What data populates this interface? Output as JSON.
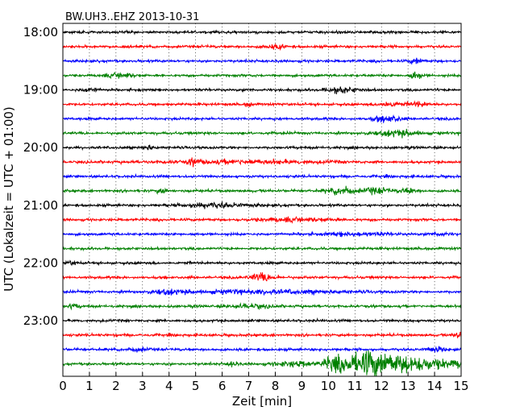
{
  "chart_data": {
    "type": "line",
    "title": "BW.UH3..EHZ 2013-10-31",
    "xlabel": "Zeit  [min]",
    "ylabel": "UTC (Lokalzeit = UTC + 01:00)",
    "xlim": [
      0,
      15
    ],
    "x_ticks": [
      0,
      1,
      2,
      3,
      4,
      5,
      6,
      7,
      8,
      9,
      10,
      11,
      12,
      13,
      14,
      15
    ],
    "x_tick_labels": [
      "0",
      "1",
      "2",
      "3",
      "4",
      "5",
      "6",
      "7",
      "8",
      "9",
      "10",
      "11",
      "12",
      "13",
      "14",
      "15"
    ],
    "y_tick_labels": [
      "18:00",
      "19:00",
      "20:00",
      "21:00",
      "22:00",
      "23:00"
    ],
    "y_tick_rows": [
      0,
      4,
      8,
      12,
      16,
      20
    ],
    "grid": "vertical dotted",
    "trace_interval_min": 15,
    "trace_count": 24,
    "color_cycle": [
      "#000000",
      "#ff0000",
      "#0000ff",
      "#008000"
    ],
    "traces": [
      {
        "start": "18:00",
        "color": "#000000",
        "amplitude": 0.3,
        "events": []
      },
      {
        "start": "18:15",
        "color": "#ff0000",
        "amplitude": 0.3,
        "events": [
          [
            8.0,
            0.5,
            0.4
          ]
        ]
      },
      {
        "start": "18:30",
        "color": "#0000ff",
        "amplitude": 0.3,
        "events": [
          [
            13.3,
            0.8,
            0.2
          ]
        ]
      },
      {
        "start": "18:45",
        "color": "#008000",
        "amplitude": 0.3,
        "events": [
          [
            2.2,
            0.6,
            0.5
          ],
          [
            13.3,
            1.0,
            0.2
          ]
        ]
      },
      {
        "start": "19:00",
        "color": "#000000",
        "amplitude": 0.3,
        "events": [
          [
            1.0,
            0.5,
            0.3
          ],
          [
            10.5,
            0.6,
            0.6
          ]
        ]
      },
      {
        "start": "19:15",
        "color": "#ff0000",
        "amplitude": 0.3,
        "events": [
          [
            7.0,
            0.7,
            0.1
          ],
          [
            12.3,
            0.6,
            0.4
          ],
          [
            13.4,
            0.5,
            0.4
          ]
        ]
      },
      {
        "start": "19:30",
        "color": "#0000ff",
        "amplitude": 0.3,
        "events": [
          [
            12.2,
            0.8,
            0.5
          ]
        ]
      },
      {
        "start": "19:45",
        "color": "#008000",
        "amplitude": 0.3,
        "events": [
          [
            12.6,
            0.7,
            0.9
          ]
        ]
      },
      {
        "start": "20:00",
        "color": "#000000",
        "amplitude": 0.3,
        "events": [
          [
            3.2,
            0.5,
            0.2
          ]
        ]
      },
      {
        "start": "20:15",
        "color": "#ff0000",
        "amplitude": 0.3,
        "events": [
          [
            4.9,
            0.6,
            0.2
          ],
          [
            7.0,
            0.4,
            3.0
          ]
        ]
      },
      {
        "start": "20:30",
        "color": "#0000ff",
        "amplitude": 0.3,
        "events": []
      },
      {
        "start": "20:45",
        "color": "#008000",
        "amplitude": 0.3,
        "events": [
          [
            3.7,
            0.5,
            0.2
          ],
          [
            10.5,
            0.9,
            0.5
          ],
          [
            11.8,
            0.7,
            0.5
          ],
          [
            13.0,
            0.6,
            0.3
          ]
        ]
      },
      {
        "start": "21:00",
        "color": "#000000",
        "amplitude": 0.3,
        "events": [
          [
            5.8,
            0.5,
            1.2
          ]
        ]
      },
      {
        "start": "21:15",
        "color": "#ff0000",
        "amplitude": 0.3,
        "events": [
          [
            8.8,
            0.4,
            1.5
          ]
        ]
      },
      {
        "start": "21:30",
        "color": "#0000ff",
        "amplitude": 0.3,
        "events": [
          [
            11.0,
            0.3,
            1.5
          ],
          [
            14.2,
            0.4,
            0.3
          ]
        ]
      },
      {
        "start": "21:45",
        "color": "#008000",
        "amplitude": 0.3,
        "events": []
      },
      {
        "start": "22:00",
        "color": "#000000",
        "amplitude": 0.3,
        "events": [
          [
            0.3,
            0.4,
            0.2
          ]
        ]
      },
      {
        "start": "22:15",
        "color": "#ff0000",
        "amplitude": 0.3,
        "events": [
          [
            7.5,
            0.9,
            0.5
          ]
        ]
      },
      {
        "start": "22:30",
        "color": "#0000ff",
        "amplitude": 0.3,
        "events": [
          [
            3.9,
            0.5,
            0.6
          ],
          [
            7.5,
            0.4,
            3.0
          ]
        ]
      },
      {
        "start": "22:45",
        "color": "#008000",
        "amplitude": 0.3,
        "events": [
          [
            0.4,
            0.4,
            0.3
          ],
          [
            7.0,
            0.4,
            0.8
          ]
        ]
      },
      {
        "start": "23:00",
        "color": "#000000",
        "amplitude": 0.3,
        "events": []
      },
      {
        "start": "23:15",
        "color": "#ff0000",
        "amplitude": 0.3,
        "events": [
          [
            14.9,
            0.7,
            0.2
          ]
        ]
      },
      {
        "start": "23:30",
        "color": "#0000ff",
        "amplitude": 0.3,
        "events": [
          [
            2.8,
            0.4,
            0.4
          ],
          [
            14.0,
            0.5,
            0.4
          ]
        ]
      },
      {
        "start": "23:45",
        "color": "#008000",
        "amplitude": 0.3,
        "events": [
          [
            6.4,
            0.5,
            0.2
          ],
          [
            8.8,
            0.6,
            0.8
          ],
          [
            10.3,
            2.2,
            0.6
          ],
          [
            11.8,
            2.3,
            1.0
          ]
        ]
      }
    ]
  }
}
